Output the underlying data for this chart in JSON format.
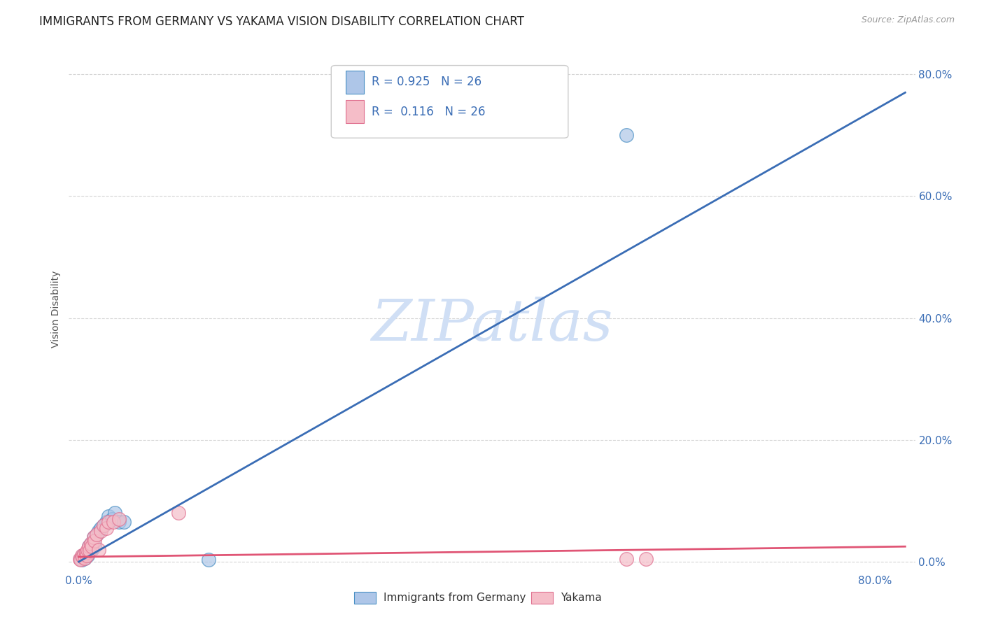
{
  "title": "IMMIGRANTS FROM GERMANY VS YAKAMA VISION DISABILITY CORRELATION CHART",
  "source": "Source: ZipAtlas.com",
  "ylabel": "Vision Disability",
  "watermark": "ZIPatlas",
  "legend_blue_r": "0.925",
  "legend_blue_n": "26",
  "legend_pink_r": "0.116",
  "legend_pink_n": "26",
  "legend_label_blue": "Immigrants from Germany",
  "legend_label_pink": "Yakama",
  "xlim": [
    -0.01,
    0.84
  ],
  "ylim": [
    -0.01,
    0.84
  ],
  "right_yticks": [
    0.0,
    0.2,
    0.4,
    0.6,
    0.8
  ],
  "right_yticklabels": [
    "0.0%",
    "20.0%",
    "40.0%",
    "60.0%",
    "80.0%"
  ],
  "xticks": [
    0.0,
    0.8
  ],
  "xticklabels": [
    "0.0%",
    "80.0%"
  ],
  "blue_scatter_x": [
    0.002,
    0.003,
    0.004,
    0.005,
    0.006,
    0.007,
    0.008,
    0.009,
    0.01,
    0.011,
    0.012,
    0.013,
    0.015,
    0.016,
    0.018,
    0.02,
    0.022,
    0.025,
    0.028,
    0.03,
    0.033,
    0.036,
    0.04,
    0.045,
    0.55,
    0.13
  ],
  "blue_scatter_y": [
    0.005,
    0.003,
    0.01,
    0.008,
    0.006,
    0.012,
    0.015,
    0.01,
    0.025,
    0.018,
    0.03,
    0.02,
    0.04,
    0.025,
    0.045,
    0.05,
    0.055,
    0.06,
    0.065,
    0.075,
    0.07,
    0.08,
    0.065,
    0.065,
    0.7,
    0.003
  ],
  "pink_scatter_x": [
    0.001,
    0.002,
    0.003,
    0.004,
    0.005,
    0.006,
    0.007,
    0.008,
    0.009,
    0.01,
    0.011,
    0.012,
    0.013,
    0.015,
    0.016,
    0.018,
    0.02,
    0.022,
    0.025,
    0.028,
    0.03,
    0.035,
    0.04,
    0.55,
    0.57,
    0.1
  ],
  "pink_scatter_y": [
    0.005,
    0.003,
    0.01,
    0.008,
    0.012,
    0.006,
    0.015,
    0.01,
    0.02,
    0.025,
    0.018,
    0.03,
    0.025,
    0.04,
    0.035,
    0.045,
    0.02,
    0.05,
    0.06,
    0.055,
    0.065,
    0.065,
    0.07,
    0.005,
    0.005,
    0.08
  ],
  "blue_line_x": [
    0.0,
    0.83
  ],
  "blue_line_y": [
    0.0,
    0.77
  ],
  "pink_line_x": [
    0.0,
    0.83
  ],
  "pink_line_y": [
    0.008,
    0.025
  ],
  "blue_color": "#aec6e8",
  "blue_edge_color": "#4a90c4",
  "blue_line_color": "#3a6db5",
  "pink_color": "#f5bdc8",
  "pink_edge_color": "#e07090",
  "pink_line_color": "#e05575",
  "grid_color": "#cccccc",
  "grid_style": "--",
  "background_color": "#ffffff",
  "title_fontsize": 12,
  "axis_label_fontsize": 10,
  "tick_fontsize": 11,
  "watermark_fontsize": 60,
  "watermark_color": "#d0dff5",
  "source_color": "#999999"
}
